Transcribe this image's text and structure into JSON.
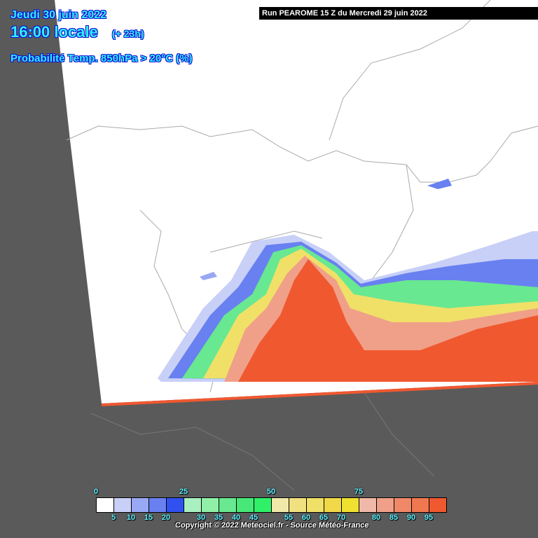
{
  "header": {
    "date": "Jeudi 30 juin 2022",
    "time": "16:00 locale",
    "lead": "(+ 23h)",
    "parameter": "Probabilité Temp. 850hPa > 20°C (%)",
    "run": "Run PEAROME 15 Z du Mercredi 29 juin 2022"
  },
  "legend": {
    "top_labels": [
      "0",
      "25",
      "50",
      "75"
    ],
    "bottom_labels": [
      "5",
      "10",
      "15",
      "20",
      "30",
      "35",
      "40",
      "45",
      "55",
      "60",
      "65",
      "70",
      "80",
      "85",
      "90",
      "95"
    ],
    "colors": [
      "#ffffff",
      "#c8d0f8",
      "#98a8f4",
      "#6880f0",
      "#3050f0",
      "#a8f0c0",
      "#90f0a8",
      "#68e890",
      "#48e878",
      "#30f068",
      "#f0e8a8",
      "#f0e080",
      "#f0e068",
      "#f0d848",
      "#f0e030",
      "#f0b8a8",
      "#f0a088",
      "#f08868",
      "#f07850",
      "#f05830"
    ]
  },
  "footer": {
    "copyright": "Copyright © 2022 Meteociel.fr - Source Météo-France"
  },
  "colors": {
    "outside_domain": "#5a5a5a",
    "borders": "#a0a0a0",
    "title": "#30f0ff"
  }
}
